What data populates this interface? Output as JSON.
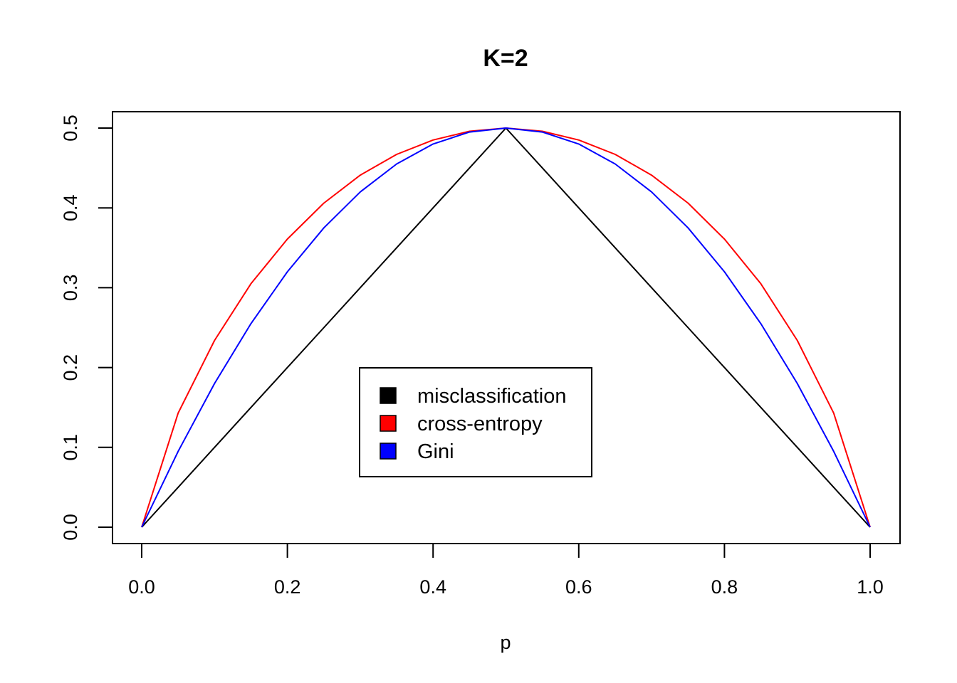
{
  "chart_data": {
    "type": "line",
    "title": "K=2",
    "xlabel": "p",
    "ylabel": "",
    "xlim": [
      0.0,
      1.0
    ],
    "ylim": [
      0.0,
      0.5
    ],
    "xticks": [
      "0.0",
      "0.2",
      "0.4",
      "0.6",
      "0.8",
      "1.0"
    ],
    "yticks": [
      "0.0",
      "0.1",
      "0.2",
      "0.3",
      "0.4",
      "0.5"
    ],
    "x": [
      0.0,
      0.05,
      0.1,
      0.15,
      0.2,
      0.25,
      0.3,
      0.35,
      0.4,
      0.45,
      0.5,
      0.55,
      0.6,
      0.65,
      0.7,
      0.75,
      0.8,
      0.85,
      0.9,
      0.95,
      1.0
    ],
    "series": [
      {
        "name": "misclassification",
        "color": "#000000",
        "values": [
          0.0,
          0.05,
          0.1,
          0.15,
          0.2,
          0.25,
          0.3,
          0.35,
          0.4,
          0.45,
          0.5,
          0.45,
          0.4,
          0.35,
          0.3,
          0.25,
          0.2,
          0.15,
          0.1,
          0.05,
          0.0
        ]
      },
      {
        "name": "cross-entropy",
        "color": "#ff0000",
        "values": [
          0.0,
          0.143,
          0.234,
          0.305,
          0.361,
          0.406,
          0.441,
          0.467,
          0.485,
          0.496,
          0.5,
          0.496,
          0.485,
          0.467,
          0.441,
          0.406,
          0.361,
          0.305,
          0.234,
          0.143,
          0.0
        ]
      },
      {
        "name": "Gini",
        "color": "#0000ff",
        "values": [
          0.0,
          0.095,
          0.18,
          0.255,
          0.32,
          0.375,
          0.42,
          0.455,
          0.48,
          0.495,
          0.5,
          0.495,
          0.48,
          0.455,
          0.42,
          0.375,
          0.32,
          0.255,
          0.18,
          0.095,
          0.0
        ]
      }
    ],
    "grid": false,
    "legend": {
      "placement": "center-bottom",
      "entries": [
        "misclassification",
        "cross-entropy",
        "Gini"
      ]
    }
  }
}
